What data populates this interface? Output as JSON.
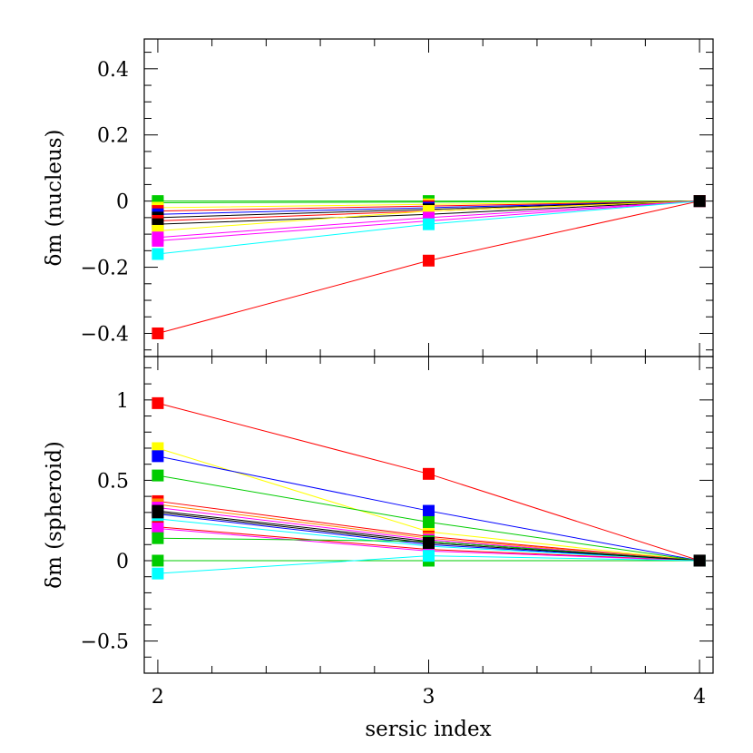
{
  "chart_data": [
    {
      "type": "line",
      "ylabel": "δm (nucleus)",
      "xlabel": "",
      "x": [
        2,
        3,
        4
      ],
      "xlim": [
        1.95,
        4.05
      ],
      "ylim": [
        -0.47,
        0.49
      ],
      "yticks": [
        {
          "value": 0.4,
          "label": "0.4"
        },
        {
          "value": 0.2,
          "label": "0.2"
        },
        {
          "value": 0,
          "label": "0"
        },
        {
          "value": -0.2,
          "label": "−0.2"
        },
        {
          "value": -0.4,
          "label": "−0.4"
        }
      ],
      "series": [
        {
          "color": "#00cc00",
          "values": [
            0.0,
            0.0,
            0
          ]
        },
        {
          "color": "#00cc00",
          "values": [
            -0.005,
            -0.003,
            0
          ]
        },
        {
          "color": "#ffff00",
          "values": [
            -0.02,
            -0.01,
            0
          ]
        },
        {
          "color": "#ff0000",
          "values": [
            -0.03,
            -0.015,
            0
          ]
        },
        {
          "color": "#0000ff",
          "values": [
            -0.04,
            -0.02,
            0
          ]
        },
        {
          "color": "#000000",
          "values": [
            -0.05,
            -0.025,
            0
          ]
        },
        {
          "color": "#ff0000",
          "values": [
            -0.06,
            -0.03,
            0
          ]
        },
        {
          "color": "#000000",
          "values": [
            -0.07,
            -0.04,
            0
          ]
        },
        {
          "color": "#ffff00",
          "values": [
            -0.09,
            -0.03,
            0
          ]
        },
        {
          "color": "#ff00ff",
          "values": [
            -0.11,
            -0.05,
            0
          ]
        },
        {
          "color": "#ff00ff",
          "values": [
            -0.12,
            -0.06,
            0
          ]
        },
        {
          "color": "#00ffff",
          "values": [
            -0.16,
            -0.07,
            0
          ]
        },
        {
          "color": "#ff0000",
          "values": [
            -0.4,
            -0.18,
            0
          ]
        }
      ]
    },
    {
      "type": "line",
      "ylabel": "δm (spheroid)",
      "xlabel": "sersic index",
      "x": [
        2,
        3,
        4
      ],
      "xlim": [
        1.95,
        4.05
      ],
      "ylim": [
        -0.7,
        1.27
      ],
      "xticks": [
        {
          "value": 2,
          "label": "2"
        },
        {
          "value": 3,
          "label": "3"
        },
        {
          "value": 4,
          "label": "4"
        }
      ],
      "yticks": [
        {
          "value": 1,
          "label": "1"
        },
        {
          "value": 0.5,
          "label": "0.5"
        },
        {
          "value": 0,
          "label": "0"
        },
        {
          "value": -0.5,
          "label": "−0.5"
        }
      ],
      "series": [
        {
          "color": "#ff0000",
          "values": [
            0.98,
            0.54,
            0
          ]
        },
        {
          "color": "#ffff00",
          "values": [
            0.7,
            0.18,
            0
          ]
        },
        {
          "color": "#0000ff",
          "values": [
            0.65,
            0.31,
            0
          ]
        },
        {
          "color": "#00cc00",
          "values": [
            0.53,
            0.24,
            0
          ]
        },
        {
          "color": "#ff0000",
          "values": [
            0.37,
            0.15,
            0
          ]
        },
        {
          "color": "#ff8800",
          "values": [
            0.35,
            0.14,
            0
          ]
        },
        {
          "color": "#ff00ff",
          "values": [
            0.33,
            0.13,
            0
          ]
        },
        {
          "color": "#000000",
          "values": [
            0.31,
            0.12,
            0
          ]
        },
        {
          "color": "#0000ff",
          "values": [
            0.29,
            0.1,
            0
          ]
        },
        {
          "color": "#00ffff",
          "values": [
            0.26,
            0.09,
            0
          ]
        },
        {
          "color": "#ff0000",
          "values": [
            0.21,
            0.07,
            0
          ]
        },
        {
          "color": "#ff00ff",
          "values": [
            0.2,
            0.06,
            0
          ]
        },
        {
          "color": "#00cc00",
          "values": [
            0.14,
            0.12,
            0
          ]
        },
        {
          "color": "#000000",
          "values": [
            0.3,
            0.11,
            0
          ]
        },
        {
          "color": "#00cc00",
          "values": [
            0.0,
            0.0,
            0
          ]
        },
        {
          "color": "#00ffff",
          "values": [
            -0.08,
            0.03,
            0
          ]
        }
      ]
    }
  ]
}
